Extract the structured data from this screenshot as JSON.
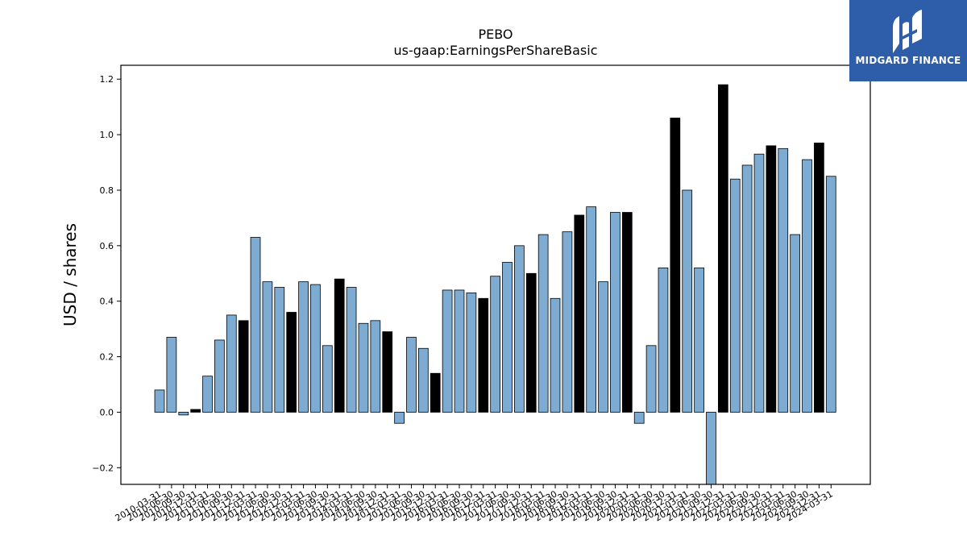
{
  "chart_data": {
    "type": "bar",
    "title": "PEBO",
    "subtitle": "us-gaap:EarningsPerShareBasic",
    "ylabel": "USD / shares",
    "xlabel": "",
    "ylim": [
      -0.26,
      1.25
    ],
    "yticks": [
      -0.2,
      0.0,
      0.2,
      0.4,
      0.6,
      0.8,
      1.0,
      1.2
    ],
    "colors": {
      "quarterly": "#7eabd1",
      "annual": "#000000",
      "edge": "#000000"
    },
    "categories": [
      "2010-03-31",
      "2010-06-30",
      "2010-09-30",
      "2010-12-31",
      "2011-03-31",
      "2011-06-30",
      "2011-09-30",
      "2011-12-31",
      "2012-03-31",
      "2012-06-30",
      "2012-09-30",
      "2012-12-31",
      "2013-03-31",
      "2013-06-30",
      "2013-09-30",
      "2013-12-31",
      "2014-03-31",
      "2014-06-30",
      "2014-09-30",
      "2014-12-31",
      "2015-03-31",
      "2015-06-30",
      "2015-09-30",
      "2015-12-31",
      "2016-03-31",
      "2016-06-30",
      "2016-09-30",
      "2016-12-31",
      "2017-03-31",
      "2017-06-30",
      "2017-09-30",
      "2017-12-31",
      "2018-03-31",
      "2018-06-30",
      "2018-09-30",
      "2018-12-31",
      "2019-03-31",
      "2019-06-30",
      "2019-09-30",
      "2019-12-31",
      "2020-03-31",
      "2020-06-30",
      "2020-09-30",
      "2020-12-31",
      "2021-03-31",
      "2021-06-30",
      "2021-09-30",
      "2021-12-31",
      "2022-03-31",
      "2022-06-30",
      "2022-09-30",
      "2022-12-31",
      "2023-03-31",
      "2023-06-30",
      "2023-09-30",
      "2023-12-31",
      "2024-03-31"
    ],
    "values": [
      0.08,
      0.27,
      -0.01,
      0.01,
      0.13,
      0.26,
      0.35,
      0.33,
      0.63,
      0.47,
      0.45,
      0.36,
      0.47,
      0.46,
      0.24,
      0.48,
      0.45,
      0.32,
      0.33,
      0.29,
      -0.04,
      0.27,
      0.23,
      0.14,
      0.44,
      0.44,
      0.43,
      0.41,
      0.49,
      0.54,
      0.6,
      0.5,
      0.64,
      0.41,
      0.65,
      0.71,
      0.74,
      0.47,
      0.72,
      0.72,
      -0.04,
      0.24,
      0.52,
      1.06,
      0.8,
      0.52,
      -0.27,
      1.18,
      0.84,
      0.89,
      0.93,
      0.96,
      0.95,
      0.64,
      0.91,
      0.97,
      0.85
    ],
    "annual_flags": [
      false,
      false,
      false,
      true,
      false,
      false,
      false,
      true,
      false,
      false,
      false,
      true,
      false,
      false,
      false,
      true,
      false,
      false,
      false,
      true,
      false,
      false,
      false,
      true,
      false,
      false,
      false,
      true,
      false,
      false,
      false,
      true,
      false,
      false,
      false,
      true,
      false,
      false,
      false,
      true,
      false,
      false,
      false,
      true,
      false,
      false,
      false,
      true,
      false,
      false,
      false,
      true,
      false,
      false,
      false,
      true,
      false
    ]
  },
  "logo": {
    "text": "MIDGARD FINANCE"
  }
}
